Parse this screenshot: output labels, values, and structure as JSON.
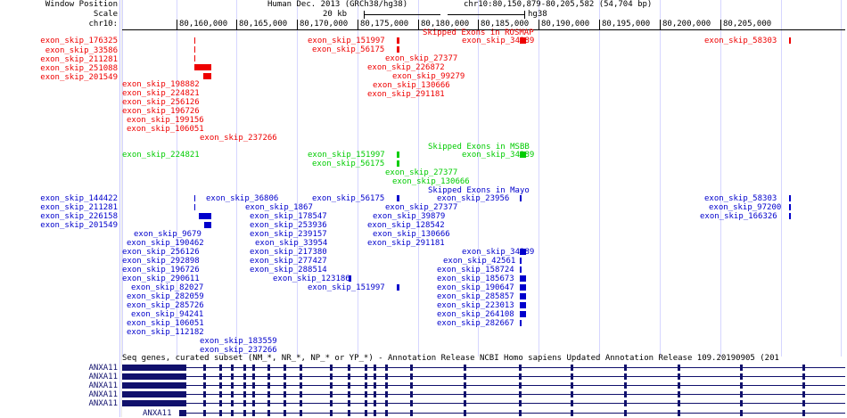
{
  "colors": {
    "rosmap": "#ee0000",
    "msbb": "#00cc00",
    "mayo": "#0000cc",
    "gene": "#10106c",
    "grid": "#d6d6ff"
  },
  "ruler": {
    "label_window": "Window Position",
    "label_scale": "Scale",
    "label_chr": "chr10:",
    "assembly": "Human Dec. 2013 (GRCh38/hg38)",
    "range": "chr10:80,150,879-80,205,582 (54,704 bp)",
    "scale_text": "20 kb",
    "build": "hg38",
    "ticks": [
      "80,160,000",
      "80,165,000",
      "80,170,000",
      "80,175,000",
      "80,180,000",
      "80,185,000",
      "80,190,000",
      "80,195,000",
      "80,200,000",
      "80,205,000"
    ]
  },
  "tracks": {
    "rosmap": {
      "title": "Skipped Exons in ROSMAP",
      "left_labels": [
        "exon_skip_176325",
        "exon_skip_33586",
        "exon_skip_211281",
        "exon_skip_251088",
        "exon_skip_201549"
      ],
      "inline": [
        "exon_skip_151997",
        "exon_skip_56175",
        "exon_skip_34389",
        "exon_skip_58303",
        "exon_skip_27377",
        "exon_skip_226872",
        "exon_skip_99279",
        "exon_skip_198882",
        "exon_skip_130666",
        "exon_skip_224821",
        "exon_skip_291181",
        "exon_skip_256126",
        "exon_skip_196726",
        "exon_skip_199156",
        "exon_skip_106051",
        "exon_skip_237266"
      ]
    },
    "msbb": {
      "title": "Skipped Exons in MSBB",
      "inline": [
        "exon_skip_224821",
        "exon_skip_151997",
        "exon_skip_34389",
        "exon_skip_56175",
        "exon_skip_27377",
        "exon_skip_130666"
      ]
    },
    "mayo": {
      "title": "Skipped Exons in Mayo",
      "left_labels": [
        "exon_skip_144422",
        "exon_skip_211281",
        "exon_skip_226158",
        "exon_skip_201549"
      ],
      "inline": [
        "exon_skip_36806",
        "exon_skip_56175",
        "exon_skip_23956",
        "exon_skip_58303",
        "exon_skip_1867",
        "exon_skip_27377",
        "exon_skip_97200",
        "exon_skip_178547",
        "exon_skip_39879",
        "exon_skip_166326",
        "exon_skip_253936",
        "exon_skip_128542",
        "exon_skip_9679",
        "exon_skip_239157",
        "exon_skip_130666",
        "exon_skip_190462",
        "exon_skip_33954",
        "exon_skip_291181",
        "exon_skip_256126",
        "exon_skip_217380",
        "exon_skip_34389",
        "exon_skip_292898",
        "exon_skip_277427",
        "exon_skip_42561",
        "exon_skip_196726",
        "exon_skip_288514",
        "exon_skip_158724",
        "exon_skip_290611",
        "exon_skip_123186",
        "exon_skip_185673",
        "exon_skip_82027",
        "exon_skip_151997",
        "exon_skip_190647",
        "exon_skip_282059",
        "exon_skip_285857",
        "exon_skip_285726",
        "exon_skip_223013",
        "exon_skip_94241",
        "exon_skip_264108",
        "exon_skip_106051",
        "exon_skip_282667",
        "exon_skip_112182",
        "exon_skip_183559",
        "exon_skip_237266"
      ]
    }
  },
  "refseq": {
    "title": "Seq genes, curated subset (NM_*, NR_*, NP_* or YP_*) - Annotation Release NCBI Homo sapiens Updated Annotation Release 109.20190905 (201",
    "genes": [
      "ANXA11",
      "ANXA11",
      "ANXA11",
      "ANXA11",
      "ANXA11",
      "ANXA11"
    ]
  }
}
